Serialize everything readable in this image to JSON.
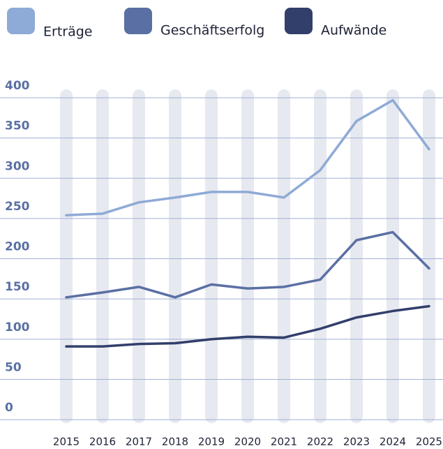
{
  "chart_data": {
    "type": "line",
    "categories": [
      "2015",
      "2016",
      "2017",
      "2018",
      "2019",
      "2020",
      "2021",
      "2022",
      "2023",
      "2024",
      "2025"
    ],
    "series": [
      {
        "name": "Erträge",
        "color": "#8eaad6",
        "values": [
          254,
          256,
          270,
          276,
          283,
          283,
          276,
          310,
          371,
          397,
          336
        ]
      },
      {
        "name": "Geschäftserfolg",
        "color": "#5a6fa3",
        "values": [
          152,
          158,
          165,
          152,
          168,
          163,
          165,
          174,
          223,
          233,
          188
        ]
      },
      {
        "name": "Aufwände",
        "color": "#323f6b",
        "values": [
          91,
          91,
          94,
          95,
          100,
          103,
          102,
          113,
          127,
          135,
          141
        ]
      }
    ],
    "ylim": [
      0,
      400
    ],
    "yticks": [
      0,
      50,
      100,
      150,
      200,
      250,
      300,
      350,
      400
    ],
    "grid": true
  }
}
